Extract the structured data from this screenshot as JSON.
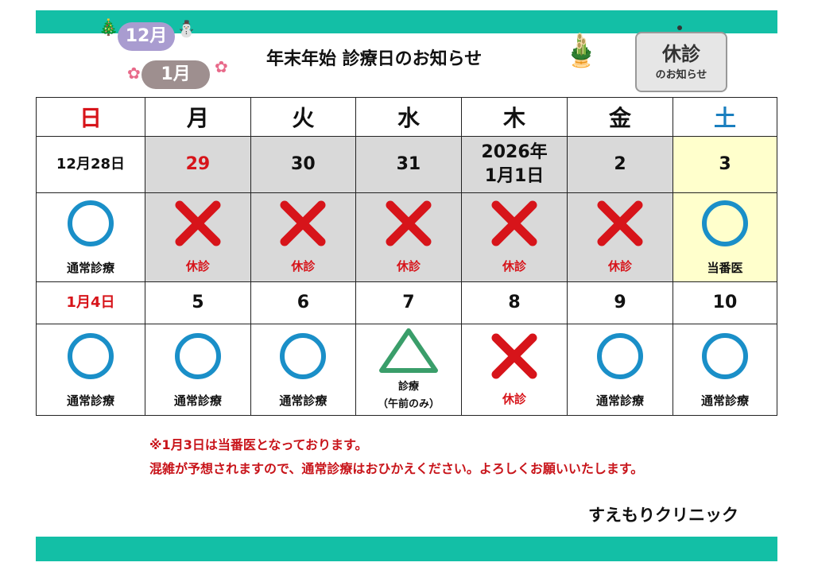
{
  "title": "年末年始 診療日のお知らせ",
  "badges": {
    "december": "12月",
    "january": "1月"
  },
  "sign": {
    "main": "休診",
    "sub": "のお知らせ"
  },
  "weekdays": [
    {
      "label": "日",
      "color": "red"
    },
    {
      "label": "月"
    },
    {
      "label": "火"
    },
    {
      "label": "水"
    },
    {
      "label": "木"
    },
    {
      "label": "金"
    },
    {
      "label": "土",
      "color": "blue"
    }
  ],
  "weeks": [
    {
      "dates": [
        {
          "text": "12月28日"
        },
        {
          "text": "29",
          "color": "red",
          "bg": "gray"
        },
        {
          "text": "30",
          "bg": "gray"
        },
        {
          "text": "31",
          "bg": "gray"
        },
        {
          "text": "2026年\n1月1日",
          "bg": "gray"
        },
        {
          "text": "2",
          "bg": "gray"
        },
        {
          "text": "3",
          "bg": "yellow"
        }
      ],
      "status": [
        {
          "mark": "circle",
          "label": "通常診療"
        },
        {
          "mark": "cross",
          "label": "休診",
          "color": "red",
          "bg": "gray"
        },
        {
          "mark": "cross",
          "label": "休診",
          "color": "red",
          "bg": "gray"
        },
        {
          "mark": "cross",
          "label": "休診",
          "color": "red",
          "bg": "gray"
        },
        {
          "mark": "cross",
          "label": "休診",
          "color": "red",
          "bg": "gray"
        },
        {
          "mark": "cross",
          "label": "休診",
          "color": "red",
          "bg": "gray"
        },
        {
          "mark": "circle",
          "label": "当番医",
          "bg": "yellow"
        }
      ]
    },
    {
      "dates": [
        {
          "text": "1月4日",
          "color": "red"
        },
        {
          "text": "5"
        },
        {
          "text": "6"
        },
        {
          "text": "7"
        },
        {
          "text": "8"
        },
        {
          "text": "9"
        },
        {
          "text": "10"
        }
      ],
      "status": [
        {
          "mark": "circle",
          "label": "通常診療"
        },
        {
          "mark": "circle",
          "label": "通常診療"
        },
        {
          "mark": "circle",
          "label": "通常診療"
        },
        {
          "mark": "triangle",
          "label": "診療\n（午前のみ）"
        },
        {
          "mark": "cross",
          "label": "休診",
          "color": "red"
        },
        {
          "mark": "circle",
          "label": "通常診療"
        },
        {
          "mark": "circle",
          "label": "通常診療"
        }
      ]
    }
  ],
  "notes": [
    "※1月3日は当番医となっております。",
    "混雑が予想されますので、通常診療はおひかえください。よろしくお願いいたします。"
  ],
  "clinic": "すえもりクリニック",
  "colors": {
    "teal": "#13bfa6",
    "red": "#d7141a",
    "circle": "#1a8fc8",
    "triangle": "#3a9e6a",
    "cross": "#d7141a",
    "closed_bg": "#d9d9d9",
    "duty_bg": "#ffffcc"
  }
}
